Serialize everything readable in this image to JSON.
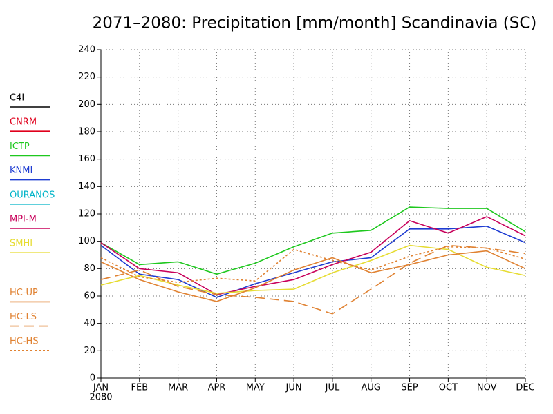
{
  "chart_data": {
    "type": "line",
    "title": "2071–2080: Precipitation [mm/month] Scandinavia (SC)",
    "categories": [
      "JAN",
      "FEB",
      "MAR",
      "APR",
      "MAY",
      "JUN",
      "JUL",
      "AUG",
      "SEP",
      "OCT",
      "NOV",
      "DEC"
    ],
    "x_sublabel": "2080",
    "ylim": [
      0,
      240
    ],
    "yticks": [
      0,
      20,
      40,
      60,
      80,
      100,
      120,
      140,
      160,
      180,
      200,
      220,
      240
    ],
    "grid": true,
    "legend": "left",
    "series": [
      {
        "name": "C4I",
        "color": "#000000",
        "dash": "solid",
        "values": [
          null,
          null,
          null,
          null,
          null,
          null,
          null,
          null,
          null,
          null,
          null,
          null
        ]
      },
      {
        "name": "CNRM",
        "color": "#e0001c",
        "dash": "solid",
        "values": [
          null,
          null,
          null,
          null,
          null,
          null,
          null,
          null,
          null,
          null,
          null,
          null
        ]
      },
      {
        "name": "ICTP",
        "color": "#1ec81e",
        "dash": "solid",
        "values": [
          99,
          83,
          85,
          76,
          84,
          96,
          106,
          108,
          125,
          124,
          124,
          107
        ]
      },
      {
        "name": "KNMI",
        "color": "#1e3cd2",
        "dash": "solid",
        "values": [
          97,
          76,
          72,
          59,
          69,
          77,
          85,
          88,
          109,
          109,
          111,
          99
        ]
      },
      {
        "name": "OURANOS",
        "color": "#00b4c8",
        "dash": "solid",
        "values": [
          null,
          null,
          null,
          null,
          null,
          null,
          null,
          null,
          null,
          null,
          null,
          null
        ]
      },
      {
        "name": "MPI-M",
        "color": "#c8005a",
        "dash": "solid",
        "values": [
          99,
          80,
          77,
          61,
          67,
          72,
          83,
          92,
          115,
          106,
          118,
          104
        ]
      },
      {
        "name": "SMHI",
        "color": "#e6dc32",
        "dash": "solid",
        "values": [
          68,
          75,
          68,
          62,
          64,
          65,
          77,
          86,
          97,
          94,
          81,
          75
        ]
      },
      {
        "name": "HC-UP",
        "color": "#e08232",
        "dash": "solid",
        "values": [
          85,
          72,
          63,
          56,
          66,
          79,
          88,
          77,
          83,
          90,
          93,
          80
        ]
      },
      {
        "name": "HC-LS",
        "color": "#e08232",
        "dash": "long",
        "values": [
          72,
          79,
          67,
          61,
          59,
          56,
          47,
          65,
          84,
          97,
          95,
          91
        ]
      },
      {
        "name": "HC-HS",
        "color": "#e08232",
        "dash": "short",
        "values": [
          88,
          74,
          70,
          73,
          71,
          94,
          86,
          79,
          89,
          96,
          95,
          87
        ]
      }
    ]
  }
}
